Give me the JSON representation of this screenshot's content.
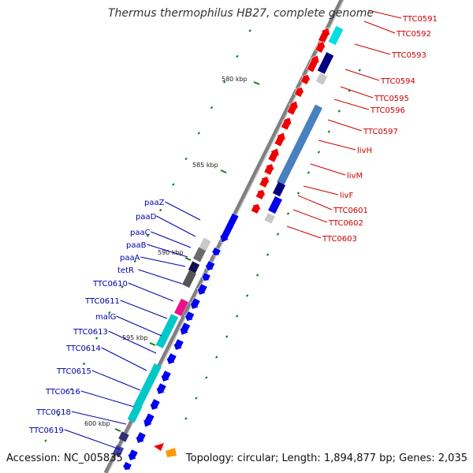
{
  "header": {
    "title": "Thermus thermophilus HB27, complete genome"
  },
  "footer": {
    "accession": "Accession: NC_005835",
    "topology": "Topology: circular; Length: 1,894,877 bp; Genes: 2,035"
  },
  "scale_labels": [
    "580 kbp",
    "585 kbp",
    "590 kbp",
    "595 kbp",
    "600 kbp"
  ],
  "colors": {
    "forward_gene": "#ee0000",
    "reverse_gene": "#0000ee",
    "forward_label": "#cc0000",
    "reverse_label": "#0000aa",
    "backbone": "#808080",
    "tick": "#1a7a1a"
  },
  "forward_genes": [
    "TTC0591",
    "TTC0592",
    "TTC0593",
    "TTC0594",
    "TTC0595",
    "TTC0596",
    "TTC0597",
    "livH",
    "livM",
    "livF",
    "TTC0601",
    "TTC0602",
    "TTC0603"
  ],
  "reverse_genes": [
    "paaZ",
    "paaD",
    "paaC",
    "paaB",
    "paaA",
    "tetR",
    "TTC0610",
    "TTC0611",
    "malG",
    "TTC0613",
    "TTC0614",
    "TTC0615",
    "TTC0616",
    "TTC0618",
    "TTC0619"
  ]
}
